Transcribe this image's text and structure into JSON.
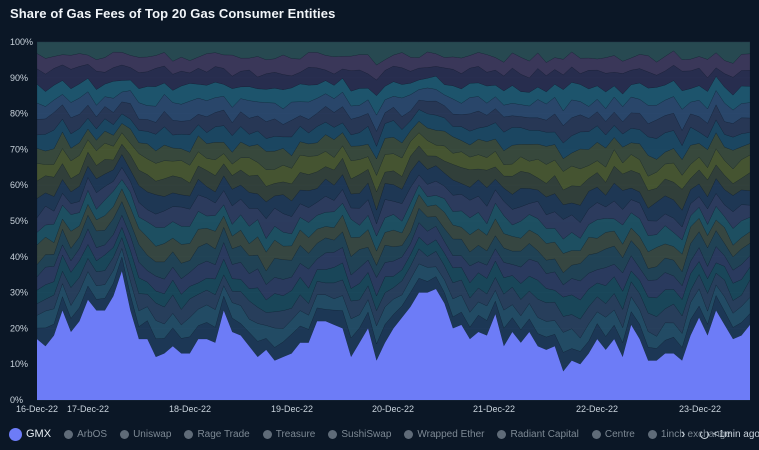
{
  "window": {
    "title": "Share of Gas Fees of Top 20 Gas Consumer Entities"
  },
  "chart_data": {
    "type": "area",
    "title": "Share of Gas Fees of Top 20 Gas Consumer Entities",
    "y_unit": "%",
    "ylim": [
      0,
      100
    ],
    "y_ticks": [
      "0%",
      "10%",
      "20%",
      "30%",
      "40%",
      "50%",
      "60%",
      "70%",
      "80%",
      "90%",
      "100%"
    ],
    "x_ticks": [
      "16-Dec-22",
      "17-Dec-22",
      "18-Dec-22",
      "19-Dec-22",
      "20-Dec-22",
      "21-Dec-22",
      "22-Dec-22",
      "23-Dec-22"
    ],
    "grid": true,
    "stacked": true,
    "x_start": "16-Dec-22",
    "x_end": "23-Dec-22",
    "legend_position": "bottom",
    "series": [
      {
        "name": "GMX",
        "color": "#6d7cf7",
        "values": [
          17,
          15,
          18,
          25,
          19,
          22,
          28,
          25,
          25,
          29,
          36,
          25,
          17,
          17,
          12,
          13,
          15,
          13,
          13,
          17,
          17,
          16,
          25,
          19,
          18,
          15,
          12,
          14,
          11,
          12,
          13,
          16,
          16,
          22,
          22,
          21,
          20,
          12,
          16,
          20,
          11,
          16,
          20,
          23,
          26,
          30,
          30,
          31,
          27,
          20,
          21,
          17,
          19,
          18,
          24,
          15,
          19,
          16,
          19,
          15,
          14,
          15,
          8,
          11,
          10,
          13,
          17,
          14,
          17,
          12,
          21,
          17,
          11,
          11,
          13,
          13,
          11,
          18,
          23,
          18,
          25,
          21,
          17,
          18,
          21
        ]
      },
      {
        "name": "ArbOS",
        "color": "#2e4a72"
      },
      {
        "name": "Uniswap",
        "color": "#1f5a6e"
      },
      {
        "name": "Rage Trade",
        "color": "#3a4a63"
      },
      {
        "name": "Treasure",
        "color": "#2b3d5c"
      },
      {
        "name": "SushiSwap",
        "color": "#3b4468"
      },
      {
        "name": "Wrapped Ether",
        "color": "#4d5a2c"
      },
      {
        "name": "Radiant Capital",
        "color": "#3f5548"
      },
      {
        "name": "Centre",
        "color": "#1c4f6c"
      },
      {
        "name": "1inch exchange",
        "color": "#2a3550"
      }
    ]
  },
  "legend": {
    "more_arrow": "›",
    "refresh_label": "<1min ago"
  }
}
